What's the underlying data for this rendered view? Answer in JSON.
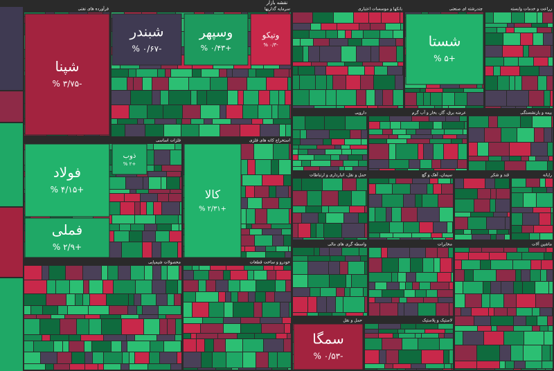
{
  "header": {
    "title": "نقشه بازار"
  },
  "palette": [
    "#1fa866",
    "#2cbf73",
    "#168a52",
    "#c8284a",
    "#8e2a47",
    "#4a4058",
    "#0f6b3e"
  ],
  "sectors": [
    {
      "title": "فرآورده های نفتی",
      "tiles": [
        {
          "symbol": "شپنا",
          "change": "% ۳/۷۵-",
          "color": "#a3233f"
        }
      ]
    },
    {
      "title": "سرمایه گذاریها",
      "tiles": [
        {
          "symbol": "شبندر",
          "change": "% ۰/۶۷-",
          "color": "#3f3a52"
        },
        {
          "symbol": "وسپهر",
          "change": "% ۰/۴۳+",
          "color": "#1d9a5e"
        },
        {
          "symbol": "وتیکو",
          "change": "% ۰/۳-",
          "color": "#c8284a"
        }
      ]
    },
    {
      "title": "بانکها و موسسات اعتباری",
      "tiles": []
    },
    {
      "title": "چندرشته ای صنعتی",
      "tiles": [
        {
          "symbol": "شستا",
          "change": "% ۵+",
          "color": "#22b36c"
        }
      ]
    },
    {
      "title": "زراعت و خدمات وابسته",
      "tiles": []
    },
    {
      "title": "فلزات اساسی",
      "tiles": [
        {
          "symbol": "فولاد",
          "change": "% ۴/۱۵+",
          "color": "#22b36c"
        },
        {
          "symbol": "فملی",
          "change": "% ۲/۹+",
          "color": "#1fa866"
        },
        {
          "symbol": "ذوب",
          "change": "% ۲+",
          "color": "#1fa866"
        }
      ]
    },
    {
      "title": "استخراج کانه های فلزی",
      "tiles": [
        {
          "symbol": "کالا",
          "change": "% ۲/۳۱+",
          "color": "#22b36c"
        }
      ]
    },
    {
      "title": "دارویی",
      "tiles": []
    },
    {
      "title": "عرضه برق، گاز، بخار و آب گرم",
      "tiles": []
    },
    {
      "title": "بیمه و بازنشستگی",
      "tiles": []
    },
    {
      "title": "حمل و نقل، انبارداری و ارتباطات",
      "tiles": []
    },
    {
      "title": "سیمان، آهک و گچ",
      "tiles": []
    },
    {
      "title": "قند و شکر",
      "tiles": []
    },
    {
      "title": "رایانه",
      "tiles": []
    },
    {
      "title": "محصولات شیمیایی",
      "tiles": []
    },
    {
      "title": "خودرو و ساخت قطعات",
      "tiles": []
    },
    {
      "title": "واسطه گری های مالی",
      "tiles": []
    },
    {
      "title": "مخابرات",
      "tiles": []
    },
    {
      "title": "حمل و نقل",
      "tiles": [
        {
          "symbol": "سمگا",
          "change": "% ۰/۵۳-",
          "color": "#a3233f"
        }
      ]
    },
    {
      "title": "لاستیک و پلاستیک",
      "tiles": []
    },
    {
      "title": "ماشین آلات",
      "tiles": []
    }
  ]
}
